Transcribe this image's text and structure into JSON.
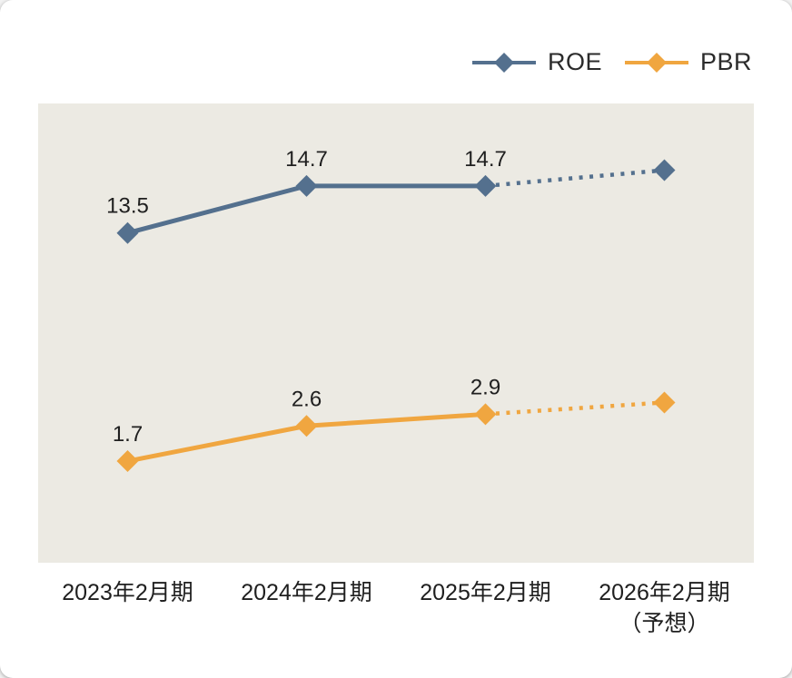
{
  "chart_data": {
    "type": "line",
    "categories": [
      "2023年2月期",
      "2024年2月期",
      "2025年2月期",
      "2026年2月期\n（予想）"
    ],
    "series": [
      {
        "name": "ROE",
        "color": "#54708E",
        "values": [
          13.5,
          14.7,
          14.7,
          15.1
        ],
        "labels": [
          "13.5",
          "14.7",
          "14.7",
          ""
        ],
        "forecast_from_index": 2,
        "ylim": [
          5.1,
          16.8
        ]
      },
      {
        "name": "PBR",
        "color": "#F0A640",
        "values": [
          1.7,
          2.6,
          2.9,
          3.2
        ],
        "labels": [
          "1.7",
          "2.6",
          "2.9",
          ""
        ],
        "forecast_from_index": 2,
        "ylim": [
          -0.9,
          10.85
        ]
      }
    ],
    "plot_background": "#ECEAE3",
    "text_color": "#1F1F1F",
    "grid": false,
    "legend_position": "top-right",
    "forecast_style": "dotted",
    "marker": "diamond"
  }
}
